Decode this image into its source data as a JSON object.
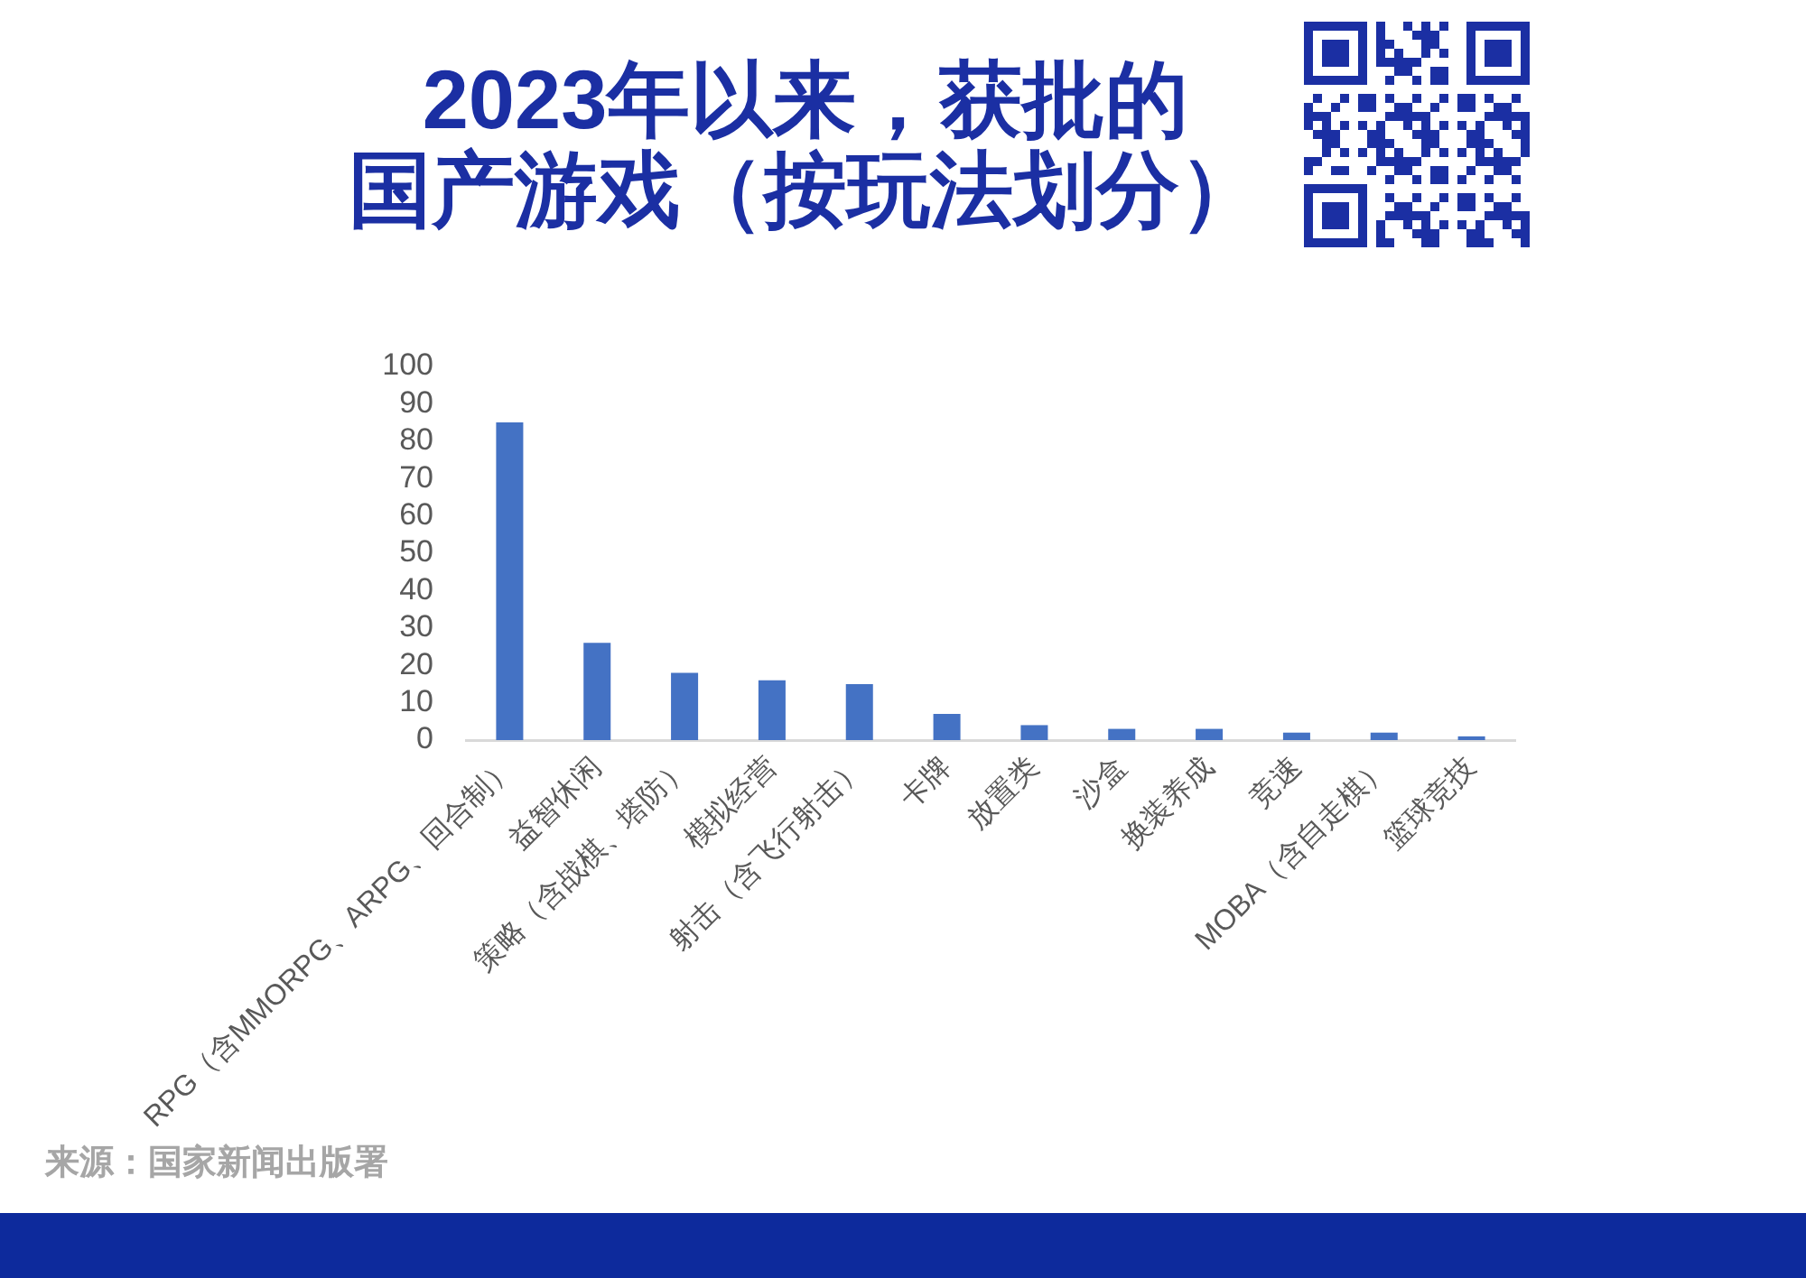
{
  "chart_data": {
    "type": "bar",
    "title": "2023年以来，获批的国产游戏（按玩法划分）",
    "categories": [
      "RPG（含MMORPG、ARPG、回合制）",
      "益智休闲",
      "策略（含战棋、塔防）",
      "模拟经营",
      "射击（含飞行射击）",
      "卡牌",
      "放置类",
      "沙盒",
      "换装养成",
      "竞速",
      "MOBA（含自走棋）",
      "篮球竞技"
    ],
    "values": [
      85,
      26,
      18,
      16,
      15,
      7,
      4,
      3,
      3,
      2,
      2,
      1
    ],
    "color": "#4472c4",
    "ylim": [
      0,
      100
    ],
    "yticks": [
      0,
      10,
      20,
      30,
      40,
      50,
      60,
      70,
      80,
      90,
      100
    ],
    "grid": false,
    "legend": false,
    "annotations": [
      "来源：国家新闻出版署"
    ]
  }
}
